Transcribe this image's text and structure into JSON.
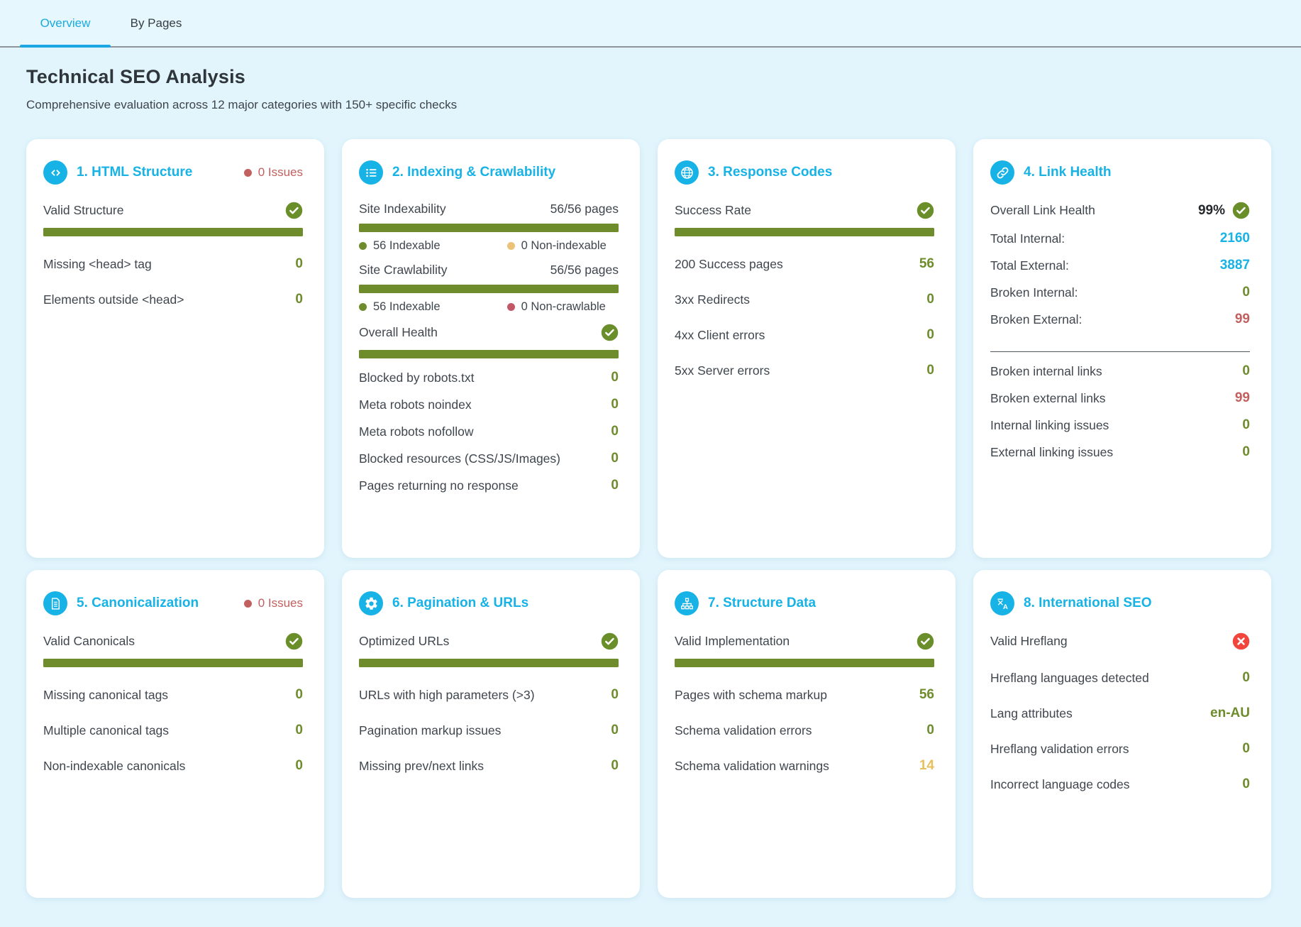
{
  "colors": {
    "accent_cyan": "#17b2e6",
    "olive_green": "#6e8c2b",
    "muted_red": "#c2605f",
    "bright_red": "#f2463c",
    "amber": "#e7c05b",
    "amber_dot": "#ecc279",
    "red_dot": "#c25768",
    "page_bg": "#e2f5fd"
  },
  "tabs": [
    {
      "label": "Overview",
      "active": true
    },
    {
      "label": "By Pages",
      "active": false
    }
  ],
  "header": {
    "title": "Technical SEO Analysis",
    "subtitle": "Comprehensive evaluation across 12 major categories with 150+ specific checks"
  },
  "cards": [
    {
      "name": "html-structure",
      "title": "1. HTML Structure",
      "icon": "code-icon",
      "badge": "0 Issues",
      "dense": false,
      "rows": [
        {
          "type": "status",
          "label": "Valid Structure",
          "status": "pass"
        },
        {
          "type": "bar",
          "percent": 100
        },
        {
          "type": "stat",
          "label": "Missing <head> tag",
          "value": "0",
          "color": "green"
        },
        {
          "type": "stat",
          "label": "Elements outside <head>",
          "value": "0",
          "color": "green"
        }
      ]
    },
    {
      "name": "indexing-crawlability",
      "title": "2. Indexing & Crawlability",
      "icon": "list-icon",
      "badge": null,
      "dense": true,
      "rows": [
        {
          "type": "metric",
          "label": "Site Indexability",
          "value": "56/56 pages"
        },
        {
          "type": "bar",
          "percent": 100
        },
        {
          "type": "legend",
          "items": [
            {
              "dot": "green",
              "label": "56 Indexable"
            },
            {
              "dot": "amber",
              "label": "0 Non-indexable"
            }
          ]
        },
        {
          "type": "metric",
          "label": "Site Crawlability",
          "value": "56/56 pages"
        },
        {
          "type": "bar",
          "percent": 100
        },
        {
          "type": "legend",
          "items": [
            {
              "dot": "green",
              "label": "56 Indexable"
            },
            {
              "dot": "red",
              "label": "0 Non-crawlable"
            }
          ]
        },
        {
          "type": "status",
          "label": "Overall Health",
          "status": "pass"
        },
        {
          "type": "bar",
          "percent": 100
        },
        {
          "type": "stat",
          "label": "Blocked by robots.txt",
          "value": "0",
          "color": "green"
        },
        {
          "type": "stat",
          "label": "Meta robots noindex",
          "value": "0",
          "color": "green"
        },
        {
          "type": "stat",
          "label": "Meta robots nofollow",
          "value": "0",
          "color": "green"
        },
        {
          "type": "stat",
          "label": "Blocked resources (CSS/JS/Images)",
          "value": "0",
          "color": "green"
        },
        {
          "type": "stat",
          "label": "Pages returning no response",
          "value": "0",
          "color": "green"
        }
      ]
    },
    {
      "name": "response-codes",
      "title": "3. Response Codes",
      "icon": "globe-icon",
      "badge": null,
      "dense": false,
      "rows": [
        {
          "type": "status",
          "label": "Success Rate",
          "status": "pass"
        },
        {
          "type": "bar",
          "percent": 100
        },
        {
          "type": "stat",
          "label": "200 Success pages",
          "value": "56",
          "color": "green"
        },
        {
          "type": "stat",
          "label": "3xx Redirects",
          "value": "0",
          "color": "green"
        },
        {
          "type": "stat",
          "label": "4xx Client errors",
          "value": "0",
          "color": "green"
        },
        {
          "type": "stat",
          "label": "5xx Server errors",
          "value": "0",
          "color": "green"
        }
      ]
    },
    {
      "name": "link-health",
      "title": "4. Link Health",
      "icon": "link-icon",
      "badge": null,
      "dense": true,
      "rows": [
        {
          "type": "status",
          "label": "Overall Link Health",
          "status": "pass",
          "value": "99%"
        },
        {
          "type": "stat",
          "label": "Total Internal:",
          "value": "2160",
          "color": "cyan"
        },
        {
          "type": "stat",
          "label": "Total External:",
          "value": "3887",
          "color": "cyan"
        },
        {
          "type": "stat",
          "label": "Broken Internal:",
          "value": "0",
          "color": "green"
        },
        {
          "type": "stat",
          "label": "Broken External:",
          "value": "99",
          "color": "red"
        },
        {
          "type": "divider"
        },
        {
          "type": "stat",
          "label": "Broken internal links",
          "value": "0",
          "color": "green"
        },
        {
          "type": "stat",
          "label": "Broken external links",
          "value": "99",
          "color": "red"
        },
        {
          "type": "stat",
          "label": "Internal linking issues",
          "value": "0",
          "color": "green"
        },
        {
          "type": "stat",
          "label": "External linking issues",
          "value": "0",
          "color": "green"
        }
      ]
    },
    {
      "name": "canonicalization",
      "title": "5. Canonicalization",
      "icon": "document-icon",
      "badge": "0 Issues",
      "dense": false,
      "rows": [
        {
          "type": "status",
          "label": "Valid Canonicals",
          "status": "pass"
        },
        {
          "type": "bar",
          "percent": 100
        },
        {
          "type": "stat",
          "label": "Missing canonical tags",
          "value": "0",
          "color": "green"
        },
        {
          "type": "stat",
          "label": "Multiple canonical tags",
          "value": "0",
          "color": "green"
        },
        {
          "type": "stat",
          "label": "Non-indexable canonicals",
          "value": "0",
          "color": "green"
        }
      ]
    },
    {
      "name": "pagination-urls",
      "title": "6. Pagination & URLs",
      "icon": "gear-icon",
      "badge": null,
      "dense": false,
      "rows": [
        {
          "type": "status",
          "label": "Optimized URLs",
          "status": "pass"
        },
        {
          "type": "bar",
          "percent": 100
        },
        {
          "type": "stat",
          "label": "URLs with high parameters (>3)",
          "value": "0",
          "color": "green"
        },
        {
          "type": "stat",
          "label": "Pagination markup issues",
          "value": "0",
          "color": "green"
        },
        {
          "type": "stat",
          "label": "Missing prev/next links",
          "value": "0",
          "color": "green"
        }
      ]
    },
    {
      "name": "structure-data",
      "title": "7. Structure Data",
      "icon": "sitemap-icon",
      "badge": null,
      "dense": false,
      "rows": [
        {
          "type": "status",
          "label": "Valid Implementation",
          "status": "pass"
        },
        {
          "type": "bar",
          "percent": 100
        },
        {
          "type": "stat",
          "label": "Pages with schema markup",
          "value": "56",
          "color": "green"
        },
        {
          "type": "stat",
          "label": "Schema validation errors",
          "value": "0",
          "color": "green"
        },
        {
          "type": "stat",
          "label": "Schema validation warnings",
          "value": "14",
          "color": "amber"
        }
      ]
    },
    {
      "name": "international-seo",
      "title": "8. International SEO",
      "icon": "translate-icon",
      "badge": null,
      "dense": false,
      "rows": [
        {
          "type": "status",
          "label": "Valid Hreflang",
          "status": "fail"
        },
        {
          "type": "stat",
          "label": "Hreflang languages detected",
          "value": "0",
          "color": "green"
        },
        {
          "type": "stat",
          "label": "Lang attributes",
          "value": "en-AU",
          "color": "green"
        },
        {
          "type": "stat",
          "label": "Hreflang validation errors",
          "value": "0",
          "color": "green"
        },
        {
          "type": "stat",
          "label": "Incorrect language codes",
          "value": "0",
          "color": "green"
        }
      ]
    }
  ]
}
